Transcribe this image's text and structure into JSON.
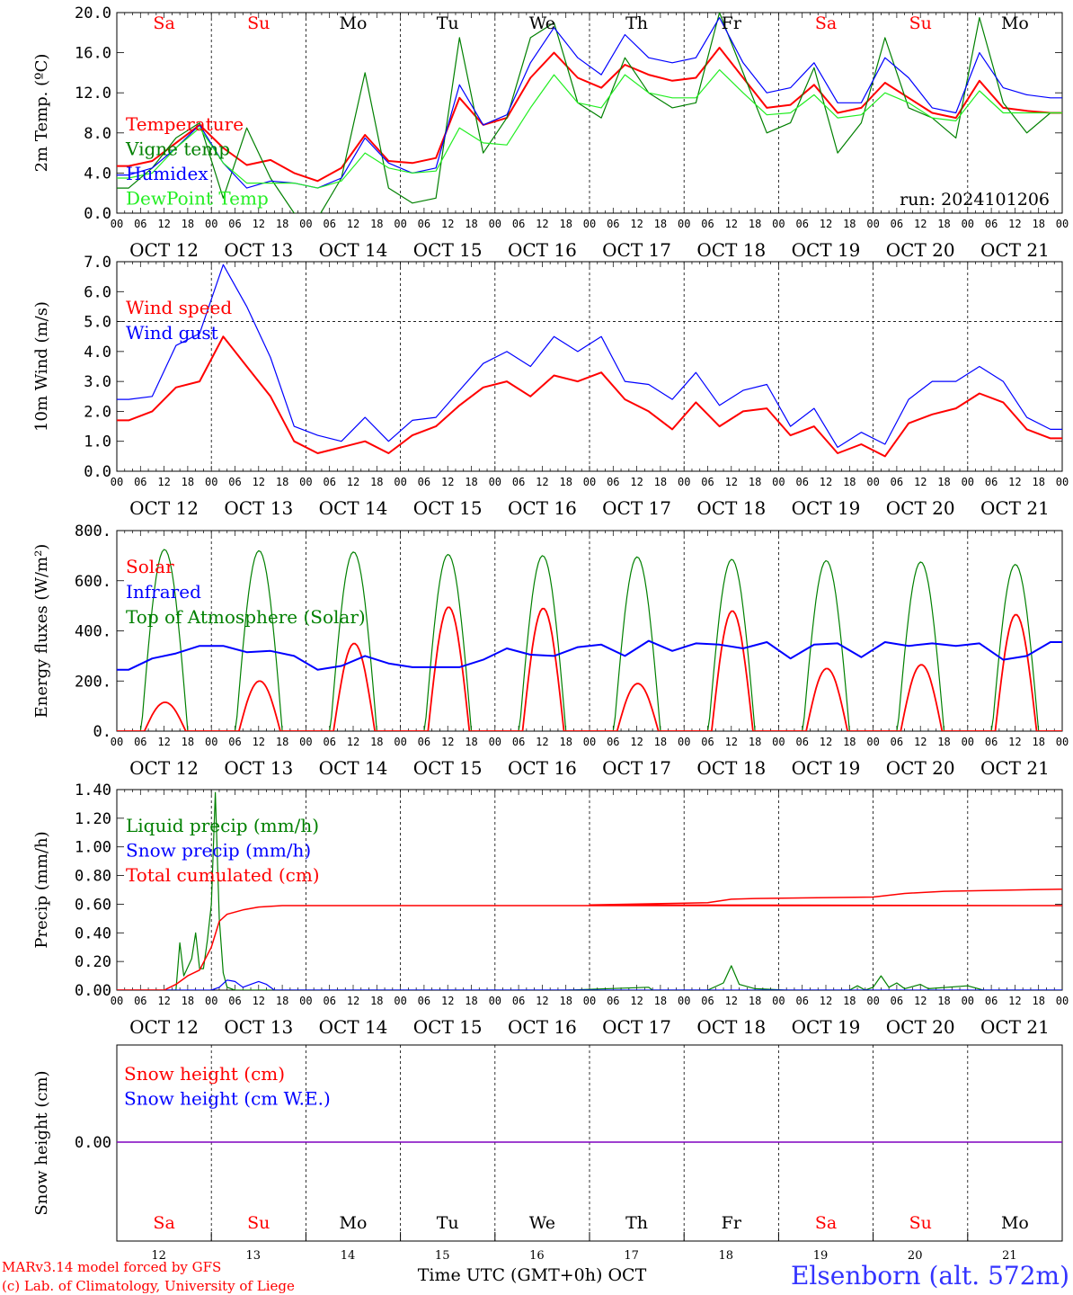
{
  "footer": {
    "model": "MARv3.14 model forced by GFS",
    "lab": "(c) Lab. of Climatology, University of Liege",
    "xlabel": "Time UTC (GMT+0h) OCT",
    "station": "Elsenborn (alt. 572m)"
  },
  "days": [
    {
      "abbr": "Sa",
      "date": "OCT 12",
      "num": "12",
      "weekend": true
    },
    {
      "abbr": "Su",
      "date": "OCT 13",
      "num": "13",
      "weekend": true
    },
    {
      "abbr": "Mo",
      "date": "OCT 14",
      "num": "14",
      "weekend": false
    },
    {
      "abbr": "Tu",
      "date": "OCT 15",
      "num": "15",
      "weekend": false
    },
    {
      "abbr": "We",
      "date": "OCT 16",
      "num": "16",
      "weekend": false
    },
    {
      "abbr": "Th",
      "date": "OCT 17",
      "num": "17",
      "weekend": false
    },
    {
      "abbr": "Fr",
      "date": "OCT 18",
      "num": "18",
      "weekend": false
    },
    {
      "abbr": "Sa",
      "date": "OCT 19",
      "num": "19",
      "weekend": true
    },
    {
      "abbr": "Su",
      "date": "OCT 20",
      "num": "20",
      "weekend": true
    },
    {
      "abbr": "Mo",
      "date": "OCT 21",
      "num": "21",
      "weekend": false
    }
  ],
  "hour_ticks": [
    "00",
    "06",
    "12",
    "18"
  ],
  "colors": {
    "red": "#ff0000",
    "green": "#008000",
    "blue": "#0000ff",
    "lightgreen": "#22ee22",
    "purple": "#7f00bf",
    "weekend": "#ff0000",
    "station": "#3333ff"
  },
  "chart_data": [
    {
      "type": "line",
      "ylabel": "2m Temp. (ºC)",
      "ylim": [
        0,
        20
      ],
      "yticks": [
        "0.0",
        "4.0",
        "8.0",
        "12.0",
        "16.0",
        "20.0"
      ],
      "annotation": "run: 2024101206",
      "x_hours": [
        0,
        6,
        12,
        18,
        24,
        30,
        36,
        42,
        48,
        54,
        60,
        66,
        72,
        78,
        84,
        90,
        96,
        102,
        108,
        114,
        120,
        126,
        132,
        138,
        144,
        150,
        156,
        162,
        168,
        174,
        180,
        186,
        192,
        198,
        204,
        210,
        216,
        222,
        228,
        234
      ],
      "series": [
        {
          "name": "Temperature",
          "color": "red",
          "values": [
            4.7,
            5.2,
            7.0,
            8.8,
            6.5,
            4.8,
            5.3,
            4.0,
            3.2,
            4.5,
            7.8,
            5.2,
            5.0,
            5.5,
            11.5,
            8.8,
            9.5,
            13.5,
            16.0,
            13.5,
            12.5,
            14.8,
            13.8,
            13.2,
            13.5,
            16.5,
            13.5,
            10.5,
            10.8,
            12.8,
            10.0,
            10.5,
            13.0,
            11.5,
            10.0,
            9.5,
            13.2,
            10.5,
            10.2,
            10.0
          ]
        },
        {
          "name": "Vigne temp",
          "color": "green",
          "values": [
            2.5,
            4.5,
            7.5,
            9.0,
            1.5,
            8.5,
            3.5,
            0.0,
            -0.5,
            3.5,
            14.0,
            2.5,
            1.0,
            1.5,
            17.5,
            6.0,
            9.5,
            17.5,
            19.0,
            11.0,
            9.5,
            15.5,
            12.0,
            10.5,
            11.0,
            20.0,
            14.0,
            8.0,
            9.0,
            14.5,
            6.0,
            9.0,
            17.5,
            10.5,
            9.5,
            7.5,
            19.5,
            11.0,
            8.0,
            10.0
          ]
        },
        {
          "name": "Humidex",
          "color": "blue",
          "values": [
            3.8,
            4.5,
            6.5,
            8.8,
            5.0,
            2.5,
            3.2,
            3.0,
            2.5,
            3.5,
            7.5,
            5.0,
            4.0,
            4.5,
            12.8,
            8.8,
            9.8,
            15.0,
            18.5,
            15.5,
            13.8,
            17.8,
            15.5,
            15.0,
            15.5,
            19.5,
            15.0,
            12.0,
            12.5,
            15.0,
            11.0,
            11.0,
            15.5,
            13.5,
            10.5,
            10.0,
            16.0,
            12.5,
            11.8,
            11.5
          ]
        },
        {
          "name": "DewPoint Temp",
          "color": "lightgreen",
          "values": [
            3.5,
            4.0,
            6.5,
            8.5,
            5.0,
            3.0,
            3.0,
            3.0,
            2.5,
            3.2,
            6.0,
            4.5,
            4.0,
            4.2,
            8.5,
            7.0,
            6.8,
            10.5,
            13.8,
            11.0,
            10.5,
            13.8,
            12.0,
            11.5,
            11.5,
            14.3,
            12.0,
            9.8,
            10.0,
            11.8,
            9.5,
            9.8,
            12.0,
            11.0,
            9.5,
            9.2,
            12.2,
            10.0,
            10.0,
            10.0
          ]
        }
      ]
    },
    {
      "type": "line",
      "ylabel": "10m Wind (m/s)",
      "ylim": [
        0,
        7
      ],
      "yticks": [
        "0.0",
        "1.0",
        "2.0",
        "3.0",
        "4.0",
        "5.0",
        "6.0",
        "7.0"
      ],
      "ref_line": 5.0,
      "x_hours": [
        0,
        6,
        12,
        18,
        24,
        30,
        36,
        42,
        48,
        54,
        60,
        66,
        72,
        78,
        84,
        90,
        96,
        102,
        108,
        114,
        120,
        126,
        132,
        138,
        144,
        150,
        156,
        162,
        168,
        174,
        180,
        186,
        192,
        198,
        204,
        210,
        216,
        222,
        228,
        234
      ],
      "series": [
        {
          "name": "Wind speed",
          "color": "red",
          "values": [
            1.7,
            2.0,
            2.8,
            3.0,
            4.5,
            3.5,
            2.5,
            1.0,
            0.6,
            0.8,
            1.0,
            0.6,
            1.2,
            1.5,
            2.2,
            2.8,
            3.0,
            2.5,
            3.2,
            3.0,
            3.3,
            2.4,
            2.0,
            1.4,
            2.3,
            1.5,
            2.0,
            2.1,
            1.2,
            1.5,
            0.6,
            0.9,
            0.5,
            1.6,
            1.9,
            2.1,
            2.6,
            2.3,
            1.4,
            1.1
          ]
        },
        {
          "name": "Wind gust",
          "color": "blue",
          "values": [
            2.4,
            2.5,
            4.2,
            4.6,
            6.9,
            5.5,
            3.8,
            1.5,
            1.2,
            1.0,
            1.8,
            1.0,
            1.7,
            1.8,
            2.7,
            3.6,
            4.0,
            3.5,
            4.5,
            4.0,
            4.5,
            3.0,
            2.9,
            2.4,
            3.3,
            2.2,
            2.7,
            2.9,
            1.5,
            2.1,
            0.8,
            1.3,
            0.9,
            2.4,
            3.0,
            3.0,
            3.5,
            3.0,
            1.8,
            1.4
          ]
        }
      ]
    },
    {
      "type": "line",
      "ylabel": "Energy fluxes (W/m²)",
      "ylim": [
        0,
        800
      ],
      "yticks": [
        "0.",
        "200.",
        "400.",
        "600.",
        "800."
      ],
      "day_peaks": {
        "Solar": [
          115,
          200,
          350,
          495,
          490,
          190,
          480,
          250,
          265,
          465
        ],
        "Top of Atmosphere (Solar)": [
          725,
          720,
          715,
          705,
          700,
          695,
          685,
          680,
          675,
          665
        ]
      },
      "series": [
        {
          "name": "Solar",
          "color": "red"
        },
        {
          "name": "Infrared",
          "color": "blue",
          "x_hours": [
            0,
            6,
            12,
            18,
            24,
            30,
            36,
            42,
            48,
            54,
            60,
            66,
            72,
            78,
            84,
            90,
            96,
            102,
            108,
            114,
            120,
            126,
            132,
            138,
            144,
            150,
            156,
            162,
            168,
            174,
            180,
            186,
            192,
            198,
            204,
            210,
            216,
            222,
            228,
            234
          ],
          "values": [
            245,
            290,
            310,
            340,
            340,
            315,
            320,
            300,
            245,
            260,
            300,
            270,
            255,
            255,
            255,
            285,
            330,
            305,
            300,
            335,
            345,
            300,
            360,
            320,
            350,
            345,
            330,
            355,
            290,
            345,
            350,
            295,
            355,
            340,
            350,
            340,
            350,
            285,
            300,
            355
          ]
        },
        {
          "name": "Top of Atmosphere (Solar)",
          "color": "green"
        }
      ]
    },
    {
      "type": "line",
      "ylabel": "Precip (mm/h)",
      "ylim": [
        0,
        1.4
      ],
      "yticks": [
        "0.00",
        "0.20",
        "0.40",
        "0.60",
        "0.80",
        "1.00",
        "1.20",
        "1.40"
      ],
      "series": [
        {
          "name": "Liquid precip (mm/h)",
          "color": "green",
          "points": [
            [
              0,
              0
            ],
            [
              12,
              0
            ],
            [
              15,
              0
            ],
            [
              16,
              0.33
            ],
            [
              17,
              0.1
            ],
            [
              19,
              0.22
            ],
            [
              20,
              0.4
            ],
            [
              21,
              0.15
            ],
            [
              22,
              0.15
            ],
            [
              23,
              0.35
            ],
            [
              24,
              0.6
            ],
            [
              25,
              1.38
            ],
            [
              26,
              0.5
            ],
            [
              27,
              0.12
            ],
            [
              28,
              0.02
            ],
            [
              30,
              0
            ],
            [
              36,
              0
            ],
            [
              114,
              0
            ],
            [
              135,
              0.02
            ],
            [
              136,
              0
            ],
            [
              150,
              0
            ],
            [
              154,
              0.05
            ],
            [
              156,
              0.17
            ],
            [
              158,
              0.04
            ],
            [
              162,
              0.01
            ],
            [
              170,
              0
            ],
            [
              186,
              0
            ],
            [
              188,
              0.03
            ],
            [
              190,
              0
            ],
            [
              192,
              0.02
            ],
            [
              194,
              0.1
            ],
            [
              196,
              0.02
            ],
            [
              198,
              0.05
            ],
            [
              200,
              0.01
            ],
            [
              204,
              0.04
            ],
            [
              206,
              0.01
            ],
            [
              216,
              0.03
            ],
            [
              220,
              0
            ],
            [
              240,
              0
            ]
          ]
        },
        {
          "name": "Snow precip (mm/h)",
          "color": "blue",
          "points": [
            [
              0,
              0
            ],
            [
              24,
              0
            ],
            [
              26,
              0.02
            ],
            [
              28,
              0.07
            ],
            [
              30,
              0.06
            ],
            [
              32,
              0.02
            ],
            [
              34,
              0.04
            ],
            [
              36,
              0.06
            ],
            [
              38,
              0.04
            ],
            [
              40,
              0
            ],
            [
              240,
              0
            ]
          ]
        },
        {
          "name": "Total cumulated (cm)",
          "color": "red",
          "points": [
            [
              0,
              0
            ],
            [
              12,
              0
            ],
            [
              15,
              0.04
            ],
            [
              18,
              0.1
            ],
            [
              21,
              0.14
            ],
            [
              24,
              0.3
            ],
            [
              26,
              0.48
            ],
            [
              28,
              0.53
            ],
            [
              32,
              0.56
            ],
            [
              36,
              0.58
            ],
            [
              42,
              0.59
            ],
            [
              240,
              0.59
            ],
            [
              60,
              0.59
            ],
            [
              120,
              0.595
            ],
            [
              150,
              0.61
            ],
            [
              156,
              0.635
            ],
            [
              162,
              0.64
            ],
            [
              192,
              0.65
            ],
            [
              200,
              0.675
            ],
            [
              210,
              0.69
            ],
            [
              240,
              0.705
            ]
          ]
        }
      ]
    },
    {
      "type": "line",
      "ylabel": "Snow height (cm)",
      "yticks": [
        "0.00"
      ],
      "series": [
        {
          "name": "Snow height (cm)",
          "color": "red",
          "values": [
            0.0,
            0.0
          ]
        },
        {
          "name": "Snow height (cm W.E.)",
          "color": "blue",
          "values": [
            0.0,
            0.0
          ]
        }
      ]
    }
  ]
}
